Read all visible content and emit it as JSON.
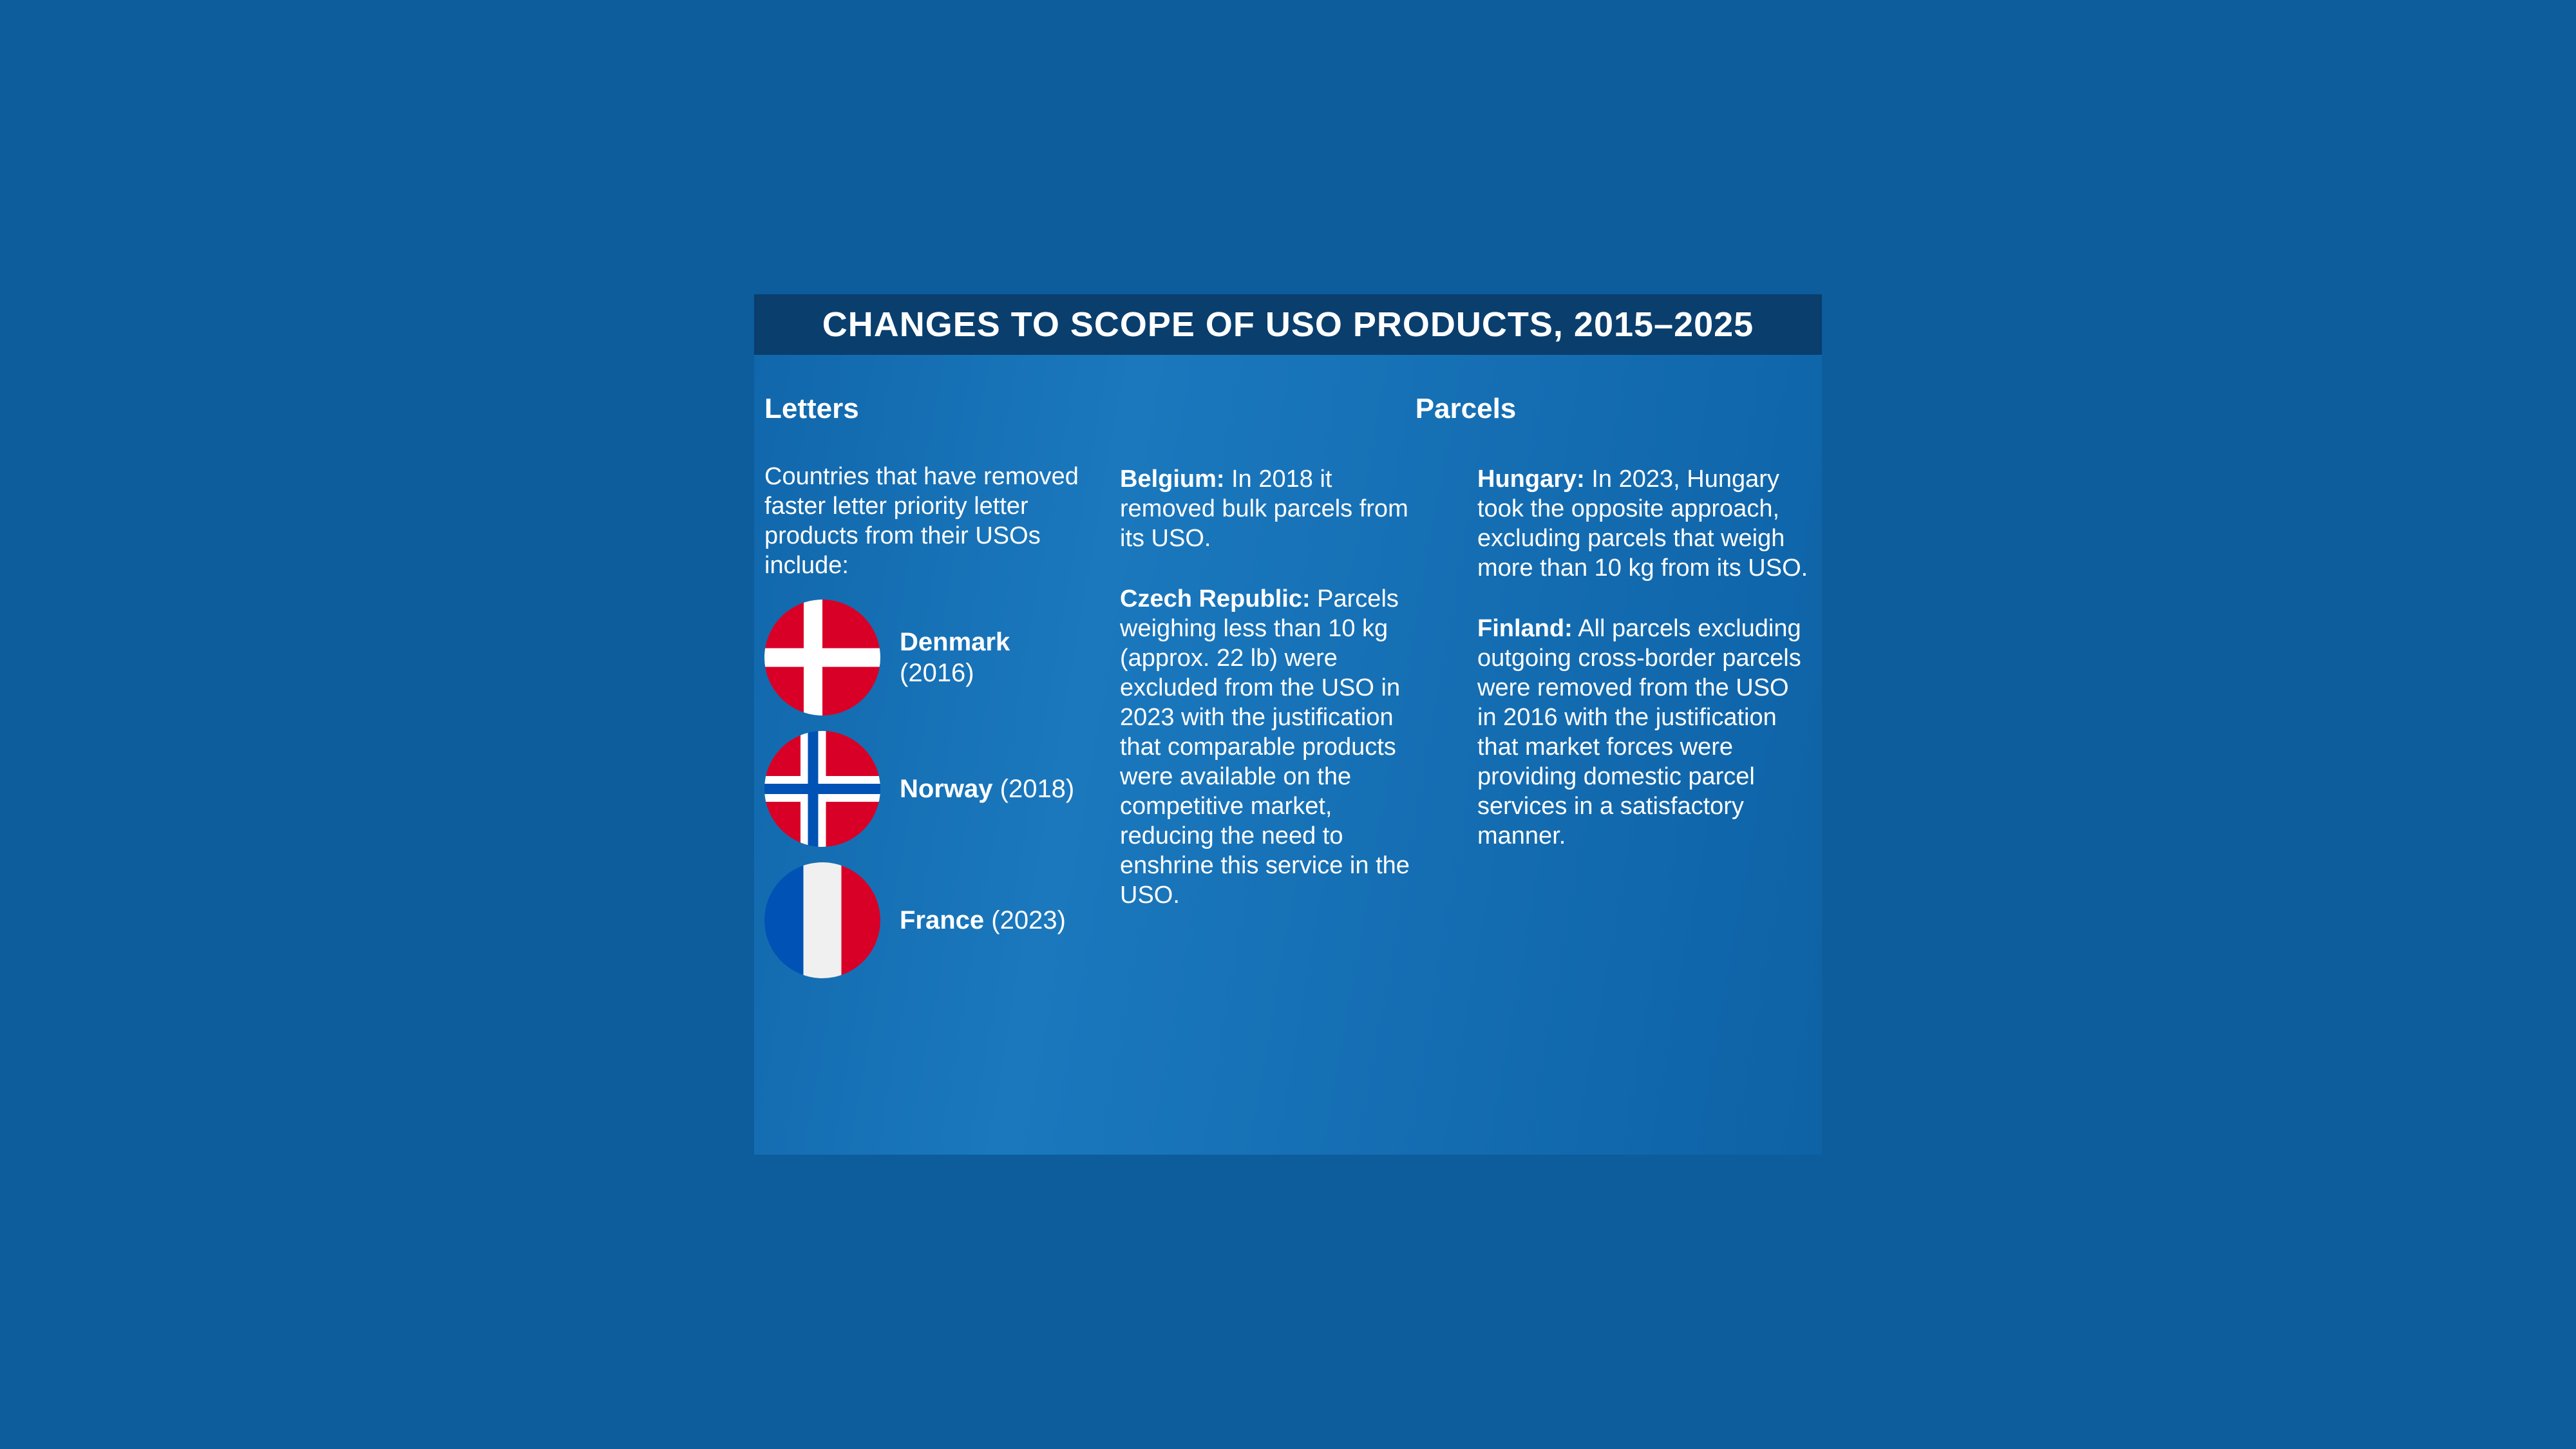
{
  "colors": {
    "background": "#0D5C9C",
    "panel_left": "#1167AB",
    "panel_mid": "#1B78BD",
    "panel_right": "#0E62A6",
    "header_bar": "#0A3E6D",
    "text": "#FFFFFF",
    "flag_red": "#D80027",
    "flag_blue": "#0052B4",
    "flag_yellow": "#FFDA44",
    "flag_green": "#6DA544",
    "flag_white": "#F0F0F0",
    "flag_black": "#000000"
  },
  "infographic": {
    "title": "CHANGES TO SCOPE OF USO PRODUCTS, 2015–2025",
    "letters": {
      "heading": "Letters",
      "intro": "Countries that have removed faster letter priority letter products from their USOs include:",
      "items": [
        {
          "country": "Denmark",
          "year": "(2016)",
          "flag_icon": "denmark-flag-icon"
        },
        {
          "country": "Norway",
          "year": "(2018)",
          "flag_icon": "norway-flag-icon"
        },
        {
          "country": "France",
          "year": "(2023)",
          "flag_icon": "france-flag-icon"
        }
      ]
    },
    "parcels": {
      "heading": "Parcels",
      "entries": [
        {
          "label": "Belgium:",
          "text": "In 2018 it removed bulk parcels from its USO.",
          "flag_icon": "belgium-flag-icon"
        },
        {
          "label": "Czech Republic:",
          "text": "Parcels weighing less than 10 kg (approx. 22 lb) were excluded from the USO in 2023 with the justification that comparable products were available on the competitive market, reducing the need to enshrine this service in the USO.",
          "flag_icon": "czech-republic-flag-icon"
        },
        {
          "label": "Hungary:",
          "text": "In 2023, Hungary took the opposite approach, excluding parcels that weigh more than 10 kg from its USO.",
          "flag_icon": "hungary-flag-icon"
        },
        {
          "label": "Finland:",
          "text": "All parcels excluding outgoing cross-border parcels were removed from the USO in 2016 with the justification that market forces were providing domestic parcel services in a satisfactory manner.",
          "flag_icon": "finland-flag-icon"
        }
      ]
    }
  }
}
